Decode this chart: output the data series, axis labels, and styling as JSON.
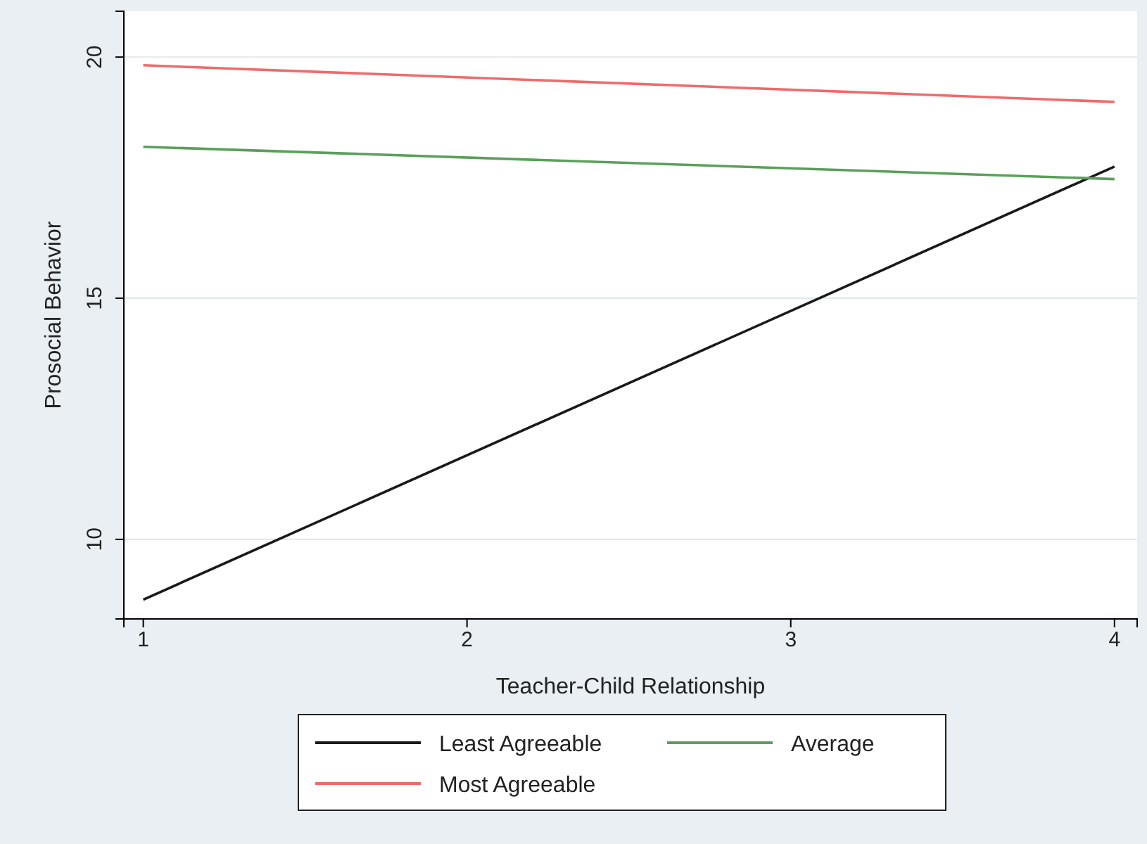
{
  "chart_data": {
    "type": "line",
    "xlabel": "Teacher-Child Relationship",
    "ylabel": "Prosocial  Behavior",
    "x": [
      1,
      4
    ],
    "series": [
      {
        "name": "Least Agreeable",
        "color": "#1a1a1a",
        "values": [
          8.75,
          17.73
        ]
      },
      {
        "name": "Average",
        "color": "#5aa05a",
        "values": [
          18.14,
          17.47
        ]
      },
      {
        "name": "Most Agreeable",
        "color": "#f06a6a",
        "values": [
          19.83,
          19.07
        ]
      }
    ],
    "xlim": [
      0.94,
      4.07
    ],
    "ylim": [
      8.35,
      20.95
    ],
    "xticks": [
      1,
      2,
      3,
      4
    ],
    "yticks": [
      10,
      15,
      20
    ],
    "grid": "y",
    "legend": "bottom",
    "line_style": "solid",
    "marker": "none"
  }
}
